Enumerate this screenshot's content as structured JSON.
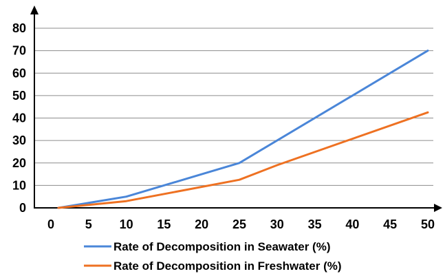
{
  "chart_data": {
    "type": "line",
    "title": "",
    "xlabel": "",
    "ylabel": "",
    "x": [
      0,
      5,
      10,
      15,
      20,
      25,
      30,
      35,
      40,
      45,
      50
    ],
    "x_ticks": [
      "0",
      "5",
      "10",
      "15",
      "20",
      "25",
      "30",
      "35",
      "40",
      "45",
      "50"
    ],
    "y_ticks": [
      "0",
      "10",
      "20",
      "30",
      "40",
      "50",
      "60",
      "70",
      "80"
    ],
    "xlim": [
      0,
      50
    ],
    "ylim": [
      0,
      80
    ],
    "grid": "horizontal",
    "legend_position": "bottom",
    "series": [
      {
        "name": "Rate of Decomposition in Seawater (%)",
        "color": "#4a86d8",
        "points": [
          [
            1,
            0
          ],
          [
            10,
            5
          ],
          [
            25,
            20
          ],
          [
            40,
            50
          ],
          [
            50,
            70
          ]
        ]
      },
      {
        "name": "Rate of Decomposition in Freshwater (%)",
        "color": "#ee7122",
        "points": [
          [
            1,
            0
          ],
          [
            10,
            3
          ],
          [
            25,
            12.5
          ],
          [
            30,
            19
          ],
          [
            50,
            42.5
          ]
        ]
      }
    ]
  }
}
